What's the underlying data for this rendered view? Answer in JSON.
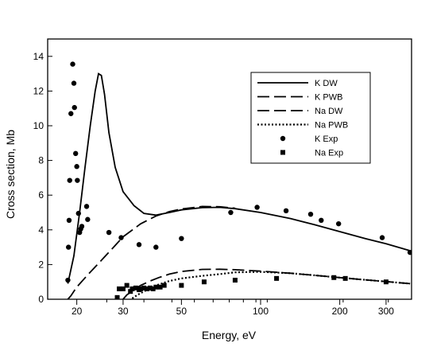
{
  "chart_data": {
    "type": "line",
    "xlabel": "Energy, eV",
    "ylabel": "Cross section, Mb",
    "xscale": "log",
    "xlim": [
      15.5,
      375
    ],
    "ylim": [
      0,
      15
    ],
    "xticks": [
      20,
      30,
      50,
      100,
      200,
      300
    ],
    "yticks": [
      0,
      2,
      4,
      6,
      8,
      10,
      12,
      14
    ],
    "grid": false,
    "legend_position": "top-right",
    "series": [
      {
        "name": "K DW",
        "style": "solid",
        "x": [
          18.5,
          19.5,
          20.5,
          21.5,
          22.5,
          23.5,
          24.2,
          24.8,
          25.5,
          26.5,
          28,
          30,
          33,
          36,
          40,
          45,
          50,
          60,
          70,
          80,
          100,
          130,
          160,
          200,
          250,
          300,
          370
        ],
        "y": [
          0.9,
          2.5,
          5.0,
          7.6,
          10.0,
          12.0,
          13.0,
          12.9,
          11.8,
          9.6,
          7.6,
          6.2,
          5.4,
          4.95,
          4.85,
          5.0,
          5.15,
          5.28,
          5.3,
          5.22,
          5.0,
          4.65,
          4.3,
          3.9,
          3.5,
          3.2,
          2.8
        ]
      },
      {
        "name": "K PWB",
        "style": "long-dash",
        "x": [
          18.5,
          19,
          20,
          22,
          25,
          28,
          30,
          35,
          40,
          45,
          50,
          60,
          70,
          80
        ],
        "y": [
          0.0,
          0.2,
          0.7,
          1.4,
          2.3,
          3.1,
          3.6,
          4.35,
          4.8,
          5.05,
          5.2,
          5.35,
          5.33,
          5.25
        ]
      },
      {
        "name": "Na DW",
        "style": "long-dash",
        "x": [
          30,
          31,
          33,
          35,
          38,
          41,
          45,
          50,
          60,
          70,
          80,
          100,
          130,
          160,
          200,
          250,
          300,
          370
        ],
        "y": [
          0.0,
          0.25,
          0.55,
          0.8,
          1.05,
          1.25,
          1.45,
          1.6,
          1.72,
          1.73,
          1.7,
          1.62,
          1.5,
          1.38,
          1.25,
          1.12,
          1.02,
          0.9
        ]
      },
      {
        "name": "Na PWB",
        "style": "dotted",
        "x": [
          32.5,
          34,
          36,
          40,
          45,
          50,
          60,
          70,
          80,
          100,
          130,
          160,
          200,
          250,
          300,
          370
        ],
        "y": [
          0.05,
          0.25,
          0.45,
          0.8,
          1.05,
          1.2,
          1.35,
          1.45,
          1.55,
          1.58,
          1.5,
          1.38,
          1.25,
          1.12,
          1.02,
          0.9
        ]
      },
      {
        "name": "K Exp",
        "style": "circle",
        "x": [
          18.5,
          18.6,
          18.7,
          18.8,
          19.0,
          19.3,
          19.5,
          19.6,
          19.8,
          20.0,
          20.1,
          20.3,
          20.5,
          20.7,
          20.9,
          21.8,
          22.0,
          26.5,
          29.5,
          34.5,
          40.0,
          50.0,
          77.0,
          97.0,
          125.0,
          155.0,
          170.0,
          198.0,
          290.0,
          370.0
        ],
        "y": [
          1.1,
          3.0,
          4.55,
          6.85,
          10.7,
          13.55,
          12.45,
          11.05,
          8.4,
          7.65,
          6.85,
          4.95,
          3.85,
          4.05,
          4.2,
          5.35,
          4.6,
          3.85,
          3.55,
          3.15,
          3.0,
          3.5,
          5.0,
          5.3,
          5.1,
          4.9,
          4.55,
          4.35,
          3.55,
          2.7
        ]
      },
      {
        "name": "Na Exp",
        "style": "square",
        "x": [
          28.5,
          29.0,
          30.0,
          31.0,
          32.0,
          32.5,
          33.5,
          34.5,
          35.0,
          36.0,
          37.0,
          38.0,
          39.0,
          40.0,
          41.5,
          43.0,
          50.0,
          61.0,
          80.0,
          115.0,
          190.0,
          210.0,
          300.0
        ],
        "y": [
          0.1,
          0.6,
          0.6,
          0.8,
          0.45,
          0.6,
          0.65,
          0.55,
          0.6,
          0.65,
          0.6,
          0.65,
          0.6,
          0.7,
          0.7,
          0.8,
          0.8,
          1.0,
          1.1,
          1.2,
          1.25,
          1.2,
          1.0
        ]
      }
    ]
  }
}
